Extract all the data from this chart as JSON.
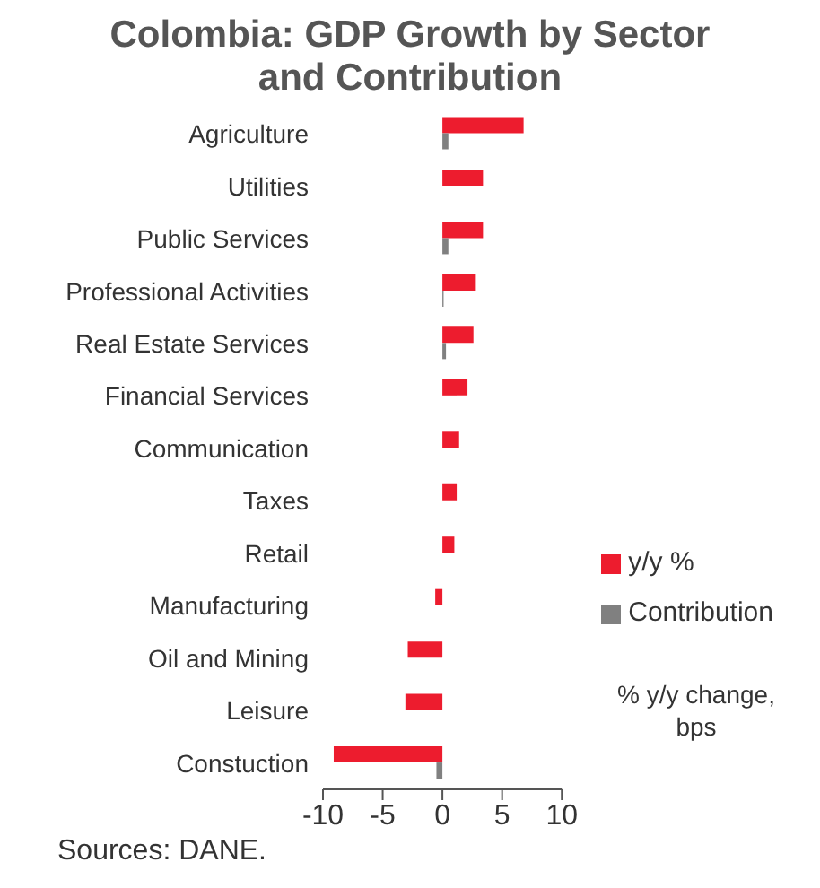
{
  "chart_data": {
    "type": "bar",
    "orientation": "horizontal",
    "title": "Colombia: GDP Growth by Sector and Contribution",
    "categories": [
      "Agriculture",
      "Utilities",
      "Public Services",
      "Professional Activities",
      "Real Estate Services",
      "Financial Services",
      "Communication",
      "Taxes",
      "Retail",
      "Manufacturing",
      "Oil and Mining",
      "Leisure",
      "Constuction"
    ],
    "series": [
      {
        "name": "y/y %",
        "color": "#ed1c2e",
        "values": [
          6.8,
          3.4,
          3.4,
          2.8,
          2.6,
          2.1,
          1.4,
          1.2,
          1.0,
          -0.6,
          -2.9,
          -3.1,
          -9.1
        ]
      },
      {
        "name": "Contribution",
        "color": "#808080",
        "values": [
          0.5,
          0,
          0.5,
          0.1,
          0.3,
          0,
          0,
          0,
          0,
          0,
          0,
          0,
          -0.5
        ]
      }
    ],
    "xlim": [
      -10,
      10
    ],
    "xticks": [
      -10,
      -5,
      0,
      5,
      10
    ],
    "legend": "bottom right",
    "annotations": [
      "% y/y change, bps",
      "Sources: DANE."
    ]
  }
}
